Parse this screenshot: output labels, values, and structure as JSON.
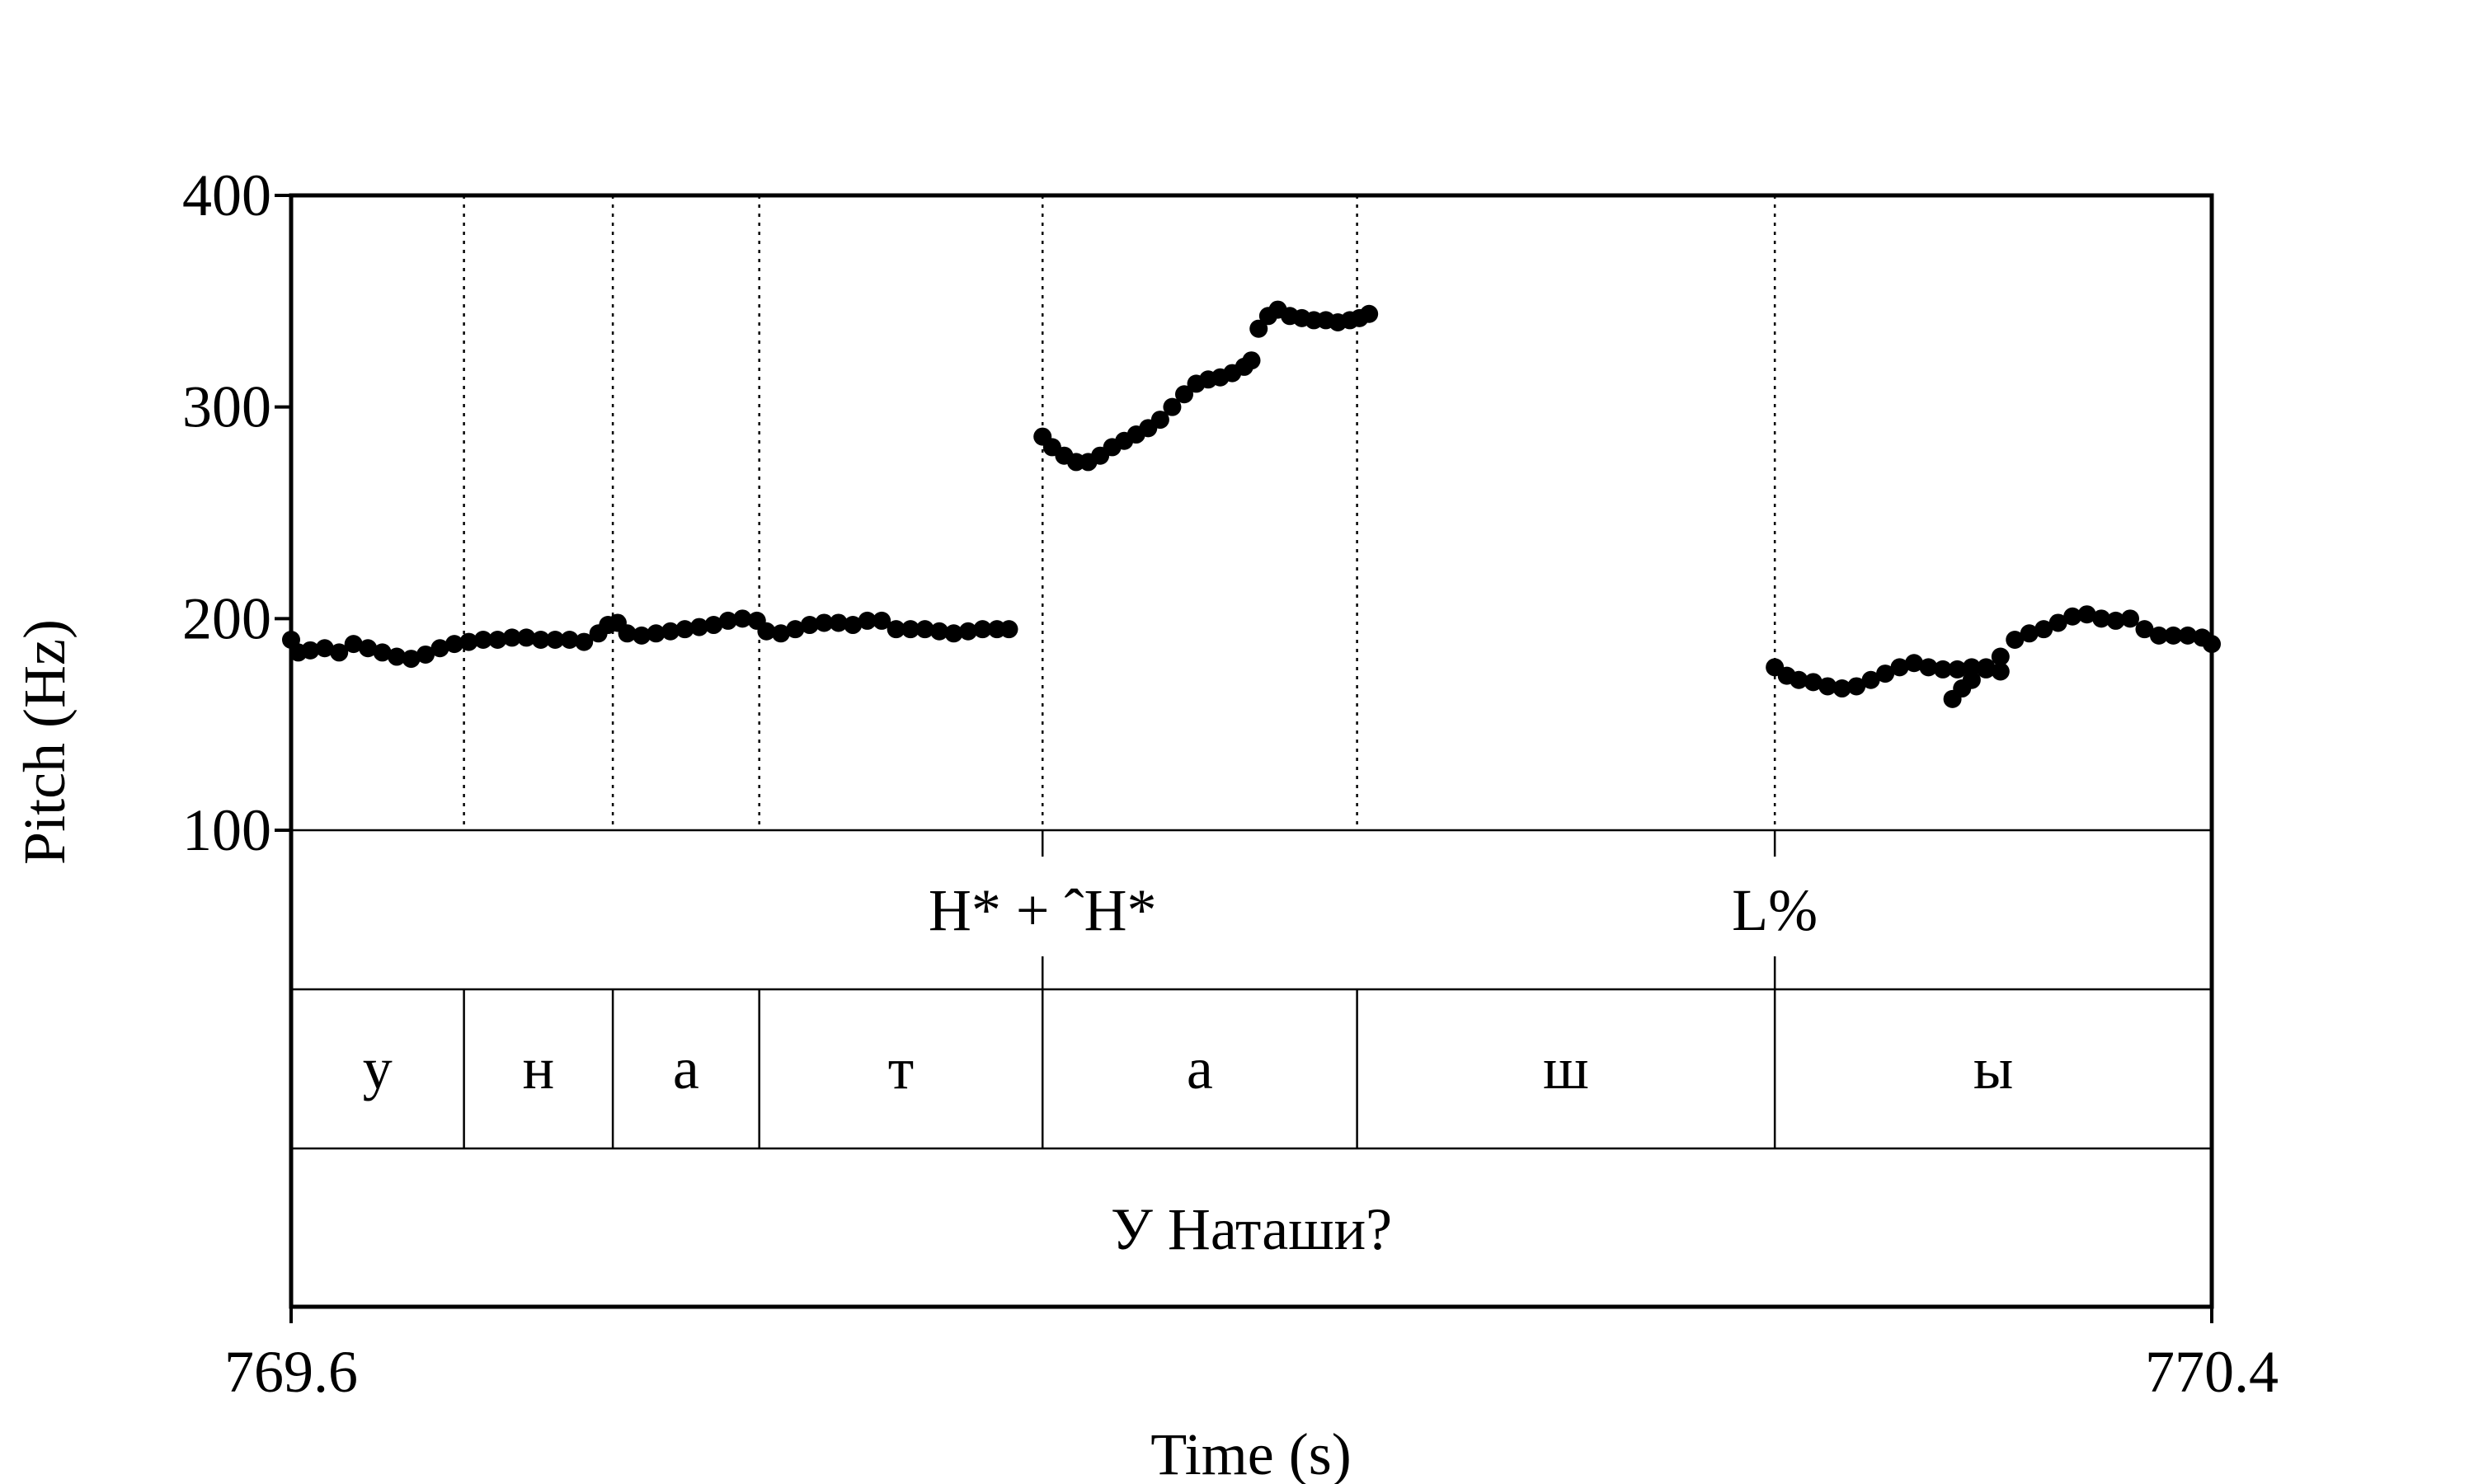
{
  "chart_data": {
    "type": "scatter",
    "title": "",
    "xlabel": "Time (s)",
    "ylabel": "Pitch (Hz)",
    "xlim": [
      769.6,
      770.4
    ],
    "ylim": [
      100,
      400
    ],
    "x_tick_labels": [
      "769.6",
      "770.4"
    ],
    "y_ticks": [
      100,
      200,
      300,
      400
    ],
    "y_tick_labels": [
      "100",
      "200",
      "300",
      "400"
    ],
    "segment_boundaries": [
      769.672,
      769.734,
      769.795,
      769.913,
      770.044,
      770.218
    ],
    "tones": [
      {
        "label": "H* + ˆH*",
        "time": 769.913
      },
      {
        "label": "L%",
        "time": 770.218
      }
    ],
    "segments": [
      {
        "label": "у",
        "start": 769.6,
        "end": 769.672
      },
      {
        "label": "н",
        "start": 769.672,
        "end": 769.734
      },
      {
        "label": "а",
        "start": 769.734,
        "end": 769.795
      },
      {
        "label": "т",
        "start": 769.795,
        "end": 769.913
      },
      {
        "label": "а",
        "start": 769.913,
        "end": 770.044
      },
      {
        "label": "ш",
        "start": 770.044,
        "end": 770.218
      },
      {
        "label": "ы",
        "start": 770.218,
        "end": 770.4
      }
    ],
    "phrase": "У Наташи?",
    "series": [
      {
        "values": [
          [
            769.6,
            190
          ],
          [
            769.603,
            184
          ],
          [
            769.608,
            185
          ],
          [
            769.614,
            186
          ],
          [
            769.62,
            184
          ],
          [
            769.626,
            188
          ],
          [
            769.632,
            186
          ],
          [
            769.638,
            184
          ],
          [
            769.644,
            182
          ],
          [
            769.65,
            181
          ],
          [
            769.656,
            183
          ],
          [
            769.662,
            186
          ],
          [
            769.668,
            188
          ],
          [
            769.674,
            189
          ],
          [
            769.68,
            190
          ],
          [
            769.686,
            190
          ],
          [
            769.692,
            191
          ],
          [
            769.698,
            191
          ],
          [
            769.704,
            190
          ],
          [
            769.71,
            190
          ],
          [
            769.716,
            190
          ],
          [
            769.722,
            189
          ],
          [
            769.728,
            193
          ],
          [
            769.732,
            197
          ],
          [
            769.736,
            198
          ],
          [
            769.74,
            193
          ],
          [
            769.746,
            192
          ],
          [
            769.752,
            193
          ],
          [
            769.758,
            194
          ],
          [
            769.764,
            195
          ],
          [
            769.77,
            196
          ],
          [
            769.776,
            197
          ],
          [
            769.782,
            199
          ],
          [
            769.788,
            200
          ],
          [
            769.794,
            199
          ],
          [
            769.798,
            194
          ],
          [
            769.804,
            193
          ],
          [
            769.81,
            195
          ],
          [
            769.816,
            197
          ],
          [
            769.822,
            198
          ],
          [
            769.828,
            198
          ],
          [
            769.834,
            197
          ],
          [
            769.84,
            199
          ],
          [
            769.846,
            199
          ],
          [
            769.852,
            195
          ],
          [
            769.858,
            195
          ],
          [
            769.864,
            195
          ],
          [
            769.87,
            194
          ],
          [
            769.876,
            193
          ],
          [
            769.882,
            194
          ],
          [
            769.888,
            195
          ],
          [
            769.894,
            195
          ],
          [
            769.899,
            195
          ]
        ]
      },
      {
        "values": [
          [
            769.913,
            286
          ],
          [
            769.917,
            281
          ],
          [
            769.922,
            277
          ],
          [
            769.927,
            274
          ],
          [
            769.932,
            274
          ],
          [
            769.937,
            277
          ],
          [
            769.942,
            281
          ],
          [
            769.947,
            284
          ],
          [
            769.952,
            287
          ],
          [
            769.957,
            290
          ],
          [
            769.962,
            294
          ],
          [
            769.967,
            300
          ],
          [
            769.972,
            306
          ],
          [
            769.977,
            311
          ],
          [
            769.982,
            313
          ],
          [
            769.987,
            314
          ],
          [
            769.992,
            316
          ],
          [
            769.997,
            319
          ],
          [
            770.0,
            322
          ],
          [
            770.003,
            337
          ],
          [
            770.007,
            343
          ],
          [
            770.011,
            346
          ],
          [
            770.016,
            343
          ],
          [
            770.021,
            342
          ],
          [
            770.026,
            341
          ],
          [
            770.031,
            341
          ],
          [
            770.036,
            340
          ],
          [
            770.041,
            341
          ],
          [
            770.045,
            342
          ],
          [
            770.049,
            344
          ]
        ]
      },
      {
        "values": [
          [
            770.218,
            177
          ],
          [
            770.223,
            173
          ],
          [
            770.228,
            171
          ],
          [
            770.234,
            170
          ],
          [
            770.24,
            168
          ],
          [
            770.246,
            167
          ],
          [
            770.252,
            168
          ],
          [
            770.258,
            171
          ],
          [
            770.264,
            174
          ],
          [
            770.27,
            177
          ],
          [
            770.276,
            179
          ],
          [
            770.282,
            177
          ],
          [
            770.288,
            176
          ],
          [
            770.294,
            176
          ],
          [
            770.3,
            177
          ],
          [
            770.306,
            176
          ],
          [
            770.312,
            175
          ],
          [
            770.292,
            162
          ],
          [
            770.296,
            167
          ],
          [
            770.3,
            171
          ],
          [
            770.306,
            177
          ],
          [
            770.312,
            182
          ],
          [
            770.318,
            190
          ],
          [
            770.324,
            193
          ],
          [
            770.33,
            195
          ],
          [
            770.336,
            198
          ],
          [
            770.342,
            201
          ],
          [
            770.348,
            202
          ],
          [
            770.354,
            200
          ],
          [
            770.36,
            199
          ],
          [
            770.366,
            200
          ],
          [
            770.372,
            195
          ],
          [
            770.378,
            192
          ],
          [
            770.384,
            192
          ],
          [
            770.39,
            192
          ],
          [
            770.396,
            191
          ],
          [
            770.4,
            188
          ]
        ]
      }
    ]
  }
}
